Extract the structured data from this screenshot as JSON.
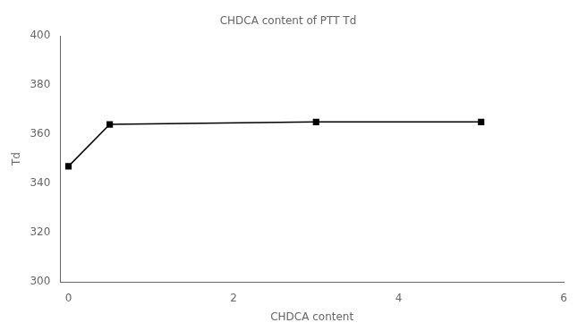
{
  "chart_data": {
    "type": "line",
    "x": [
      0,
      0.5,
      3,
      5
    ],
    "series": [
      {
        "name": "CHDCA content of PTT Td",
        "color": "#000000",
        "values": [
          347,
          364,
          365,
          365
        ],
        "marker": "square",
        "line_style": "solid"
      }
    ],
    "x_label": "CHDCA content",
    "y_label": "Td",
    "xlim": [
      -0.1,
      6
    ],
    "xticks": [
      0,
      2,
      4,
      6
    ],
    "ylim": [
      300,
      400
    ],
    "yticks": [
      300,
      320,
      340,
      360,
      380,
      400
    ],
    "grid": false,
    "legend": "top"
  }
}
